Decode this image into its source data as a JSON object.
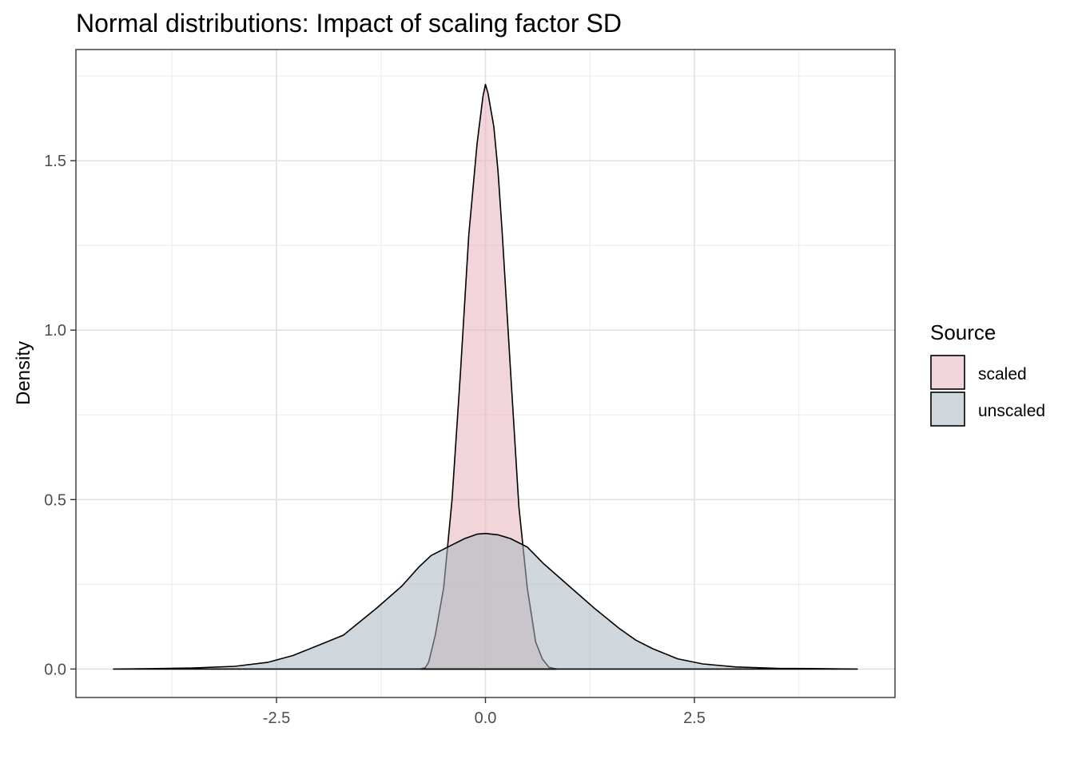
{
  "chart_data": {
    "type": "area",
    "title": "Normal distributions: Impact of scaling factor SD",
    "xlabel": "",
    "ylabel": "Density",
    "xlim": [
      -4.9,
      4.9
    ],
    "ylim": [
      -0.084,
      1.828
    ],
    "x_ticks": [
      -2.5,
      0.0,
      2.5
    ],
    "x_tick_labels": [
      "-2.5",
      "0.0",
      "2.5"
    ],
    "y_ticks": [
      0.0,
      0.5,
      1.0,
      1.5
    ],
    "y_tick_labels": [
      "0.0",
      "0.5",
      "1.0",
      "1.5"
    ],
    "grid": true,
    "legend": {
      "title": "Source",
      "position": "right"
    },
    "series": [
      {
        "name": "scaled",
        "fill": "#e8b3bb",
        "stroke": "#000000",
        "points": [
          [
            -0.78,
            0
          ],
          [
            -0.72,
            0.004
          ],
          [
            -0.68,
            0.02
          ],
          [
            -0.6,
            0.1
          ],
          [
            -0.5,
            0.24
          ],
          [
            -0.4,
            0.5
          ],
          [
            -0.3,
            0.87
          ],
          [
            -0.2,
            1.28
          ],
          [
            -0.1,
            1.55
          ],
          [
            -0.03,
            1.69
          ],
          [
            0.0,
            1.725
          ],
          [
            0.03,
            1.7
          ],
          [
            0.1,
            1.6
          ],
          [
            0.15,
            1.47
          ],
          [
            0.2,
            1.29
          ],
          [
            0.3,
            0.88
          ],
          [
            0.4,
            0.48
          ],
          [
            0.5,
            0.24
          ],
          [
            0.6,
            0.08
          ],
          [
            0.68,
            0.03
          ],
          [
            0.76,
            0.005
          ],
          [
            0.85,
            0
          ]
        ]
      },
      {
        "name": "unscaled",
        "fill": "#a9b6bf",
        "stroke": "#000000",
        "points": [
          [
            -4.45,
            0
          ],
          [
            -4.0,
            0.001
          ],
          [
            -3.5,
            0.003
          ],
          [
            -3.0,
            0.008
          ],
          [
            -2.6,
            0.02
          ],
          [
            -2.3,
            0.04
          ],
          [
            -2.0,
            0.07
          ],
          [
            -1.7,
            0.1
          ],
          [
            -1.5,
            0.14
          ],
          [
            -1.3,
            0.18
          ],
          [
            -1.0,
            0.245
          ],
          [
            -0.8,
            0.3
          ],
          [
            -0.65,
            0.335
          ],
          [
            -0.45,
            0.36
          ],
          [
            -0.25,
            0.385
          ],
          [
            -0.1,
            0.398
          ],
          [
            0.0,
            0.4
          ],
          [
            0.15,
            0.396
          ],
          [
            0.3,
            0.385
          ],
          [
            0.5,
            0.36
          ],
          [
            0.7,
            0.31
          ],
          [
            1.0,
            0.245
          ],
          [
            1.3,
            0.18
          ],
          [
            1.6,
            0.12
          ],
          [
            1.8,
            0.085
          ],
          [
            2.0,
            0.06
          ],
          [
            2.3,
            0.03
          ],
          [
            2.6,
            0.015
          ],
          [
            3.0,
            0.006
          ],
          [
            3.5,
            0.002
          ],
          [
            4.0,
            0.001
          ],
          [
            4.45,
            0
          ]
        ]
      }
    ]
  }
}
